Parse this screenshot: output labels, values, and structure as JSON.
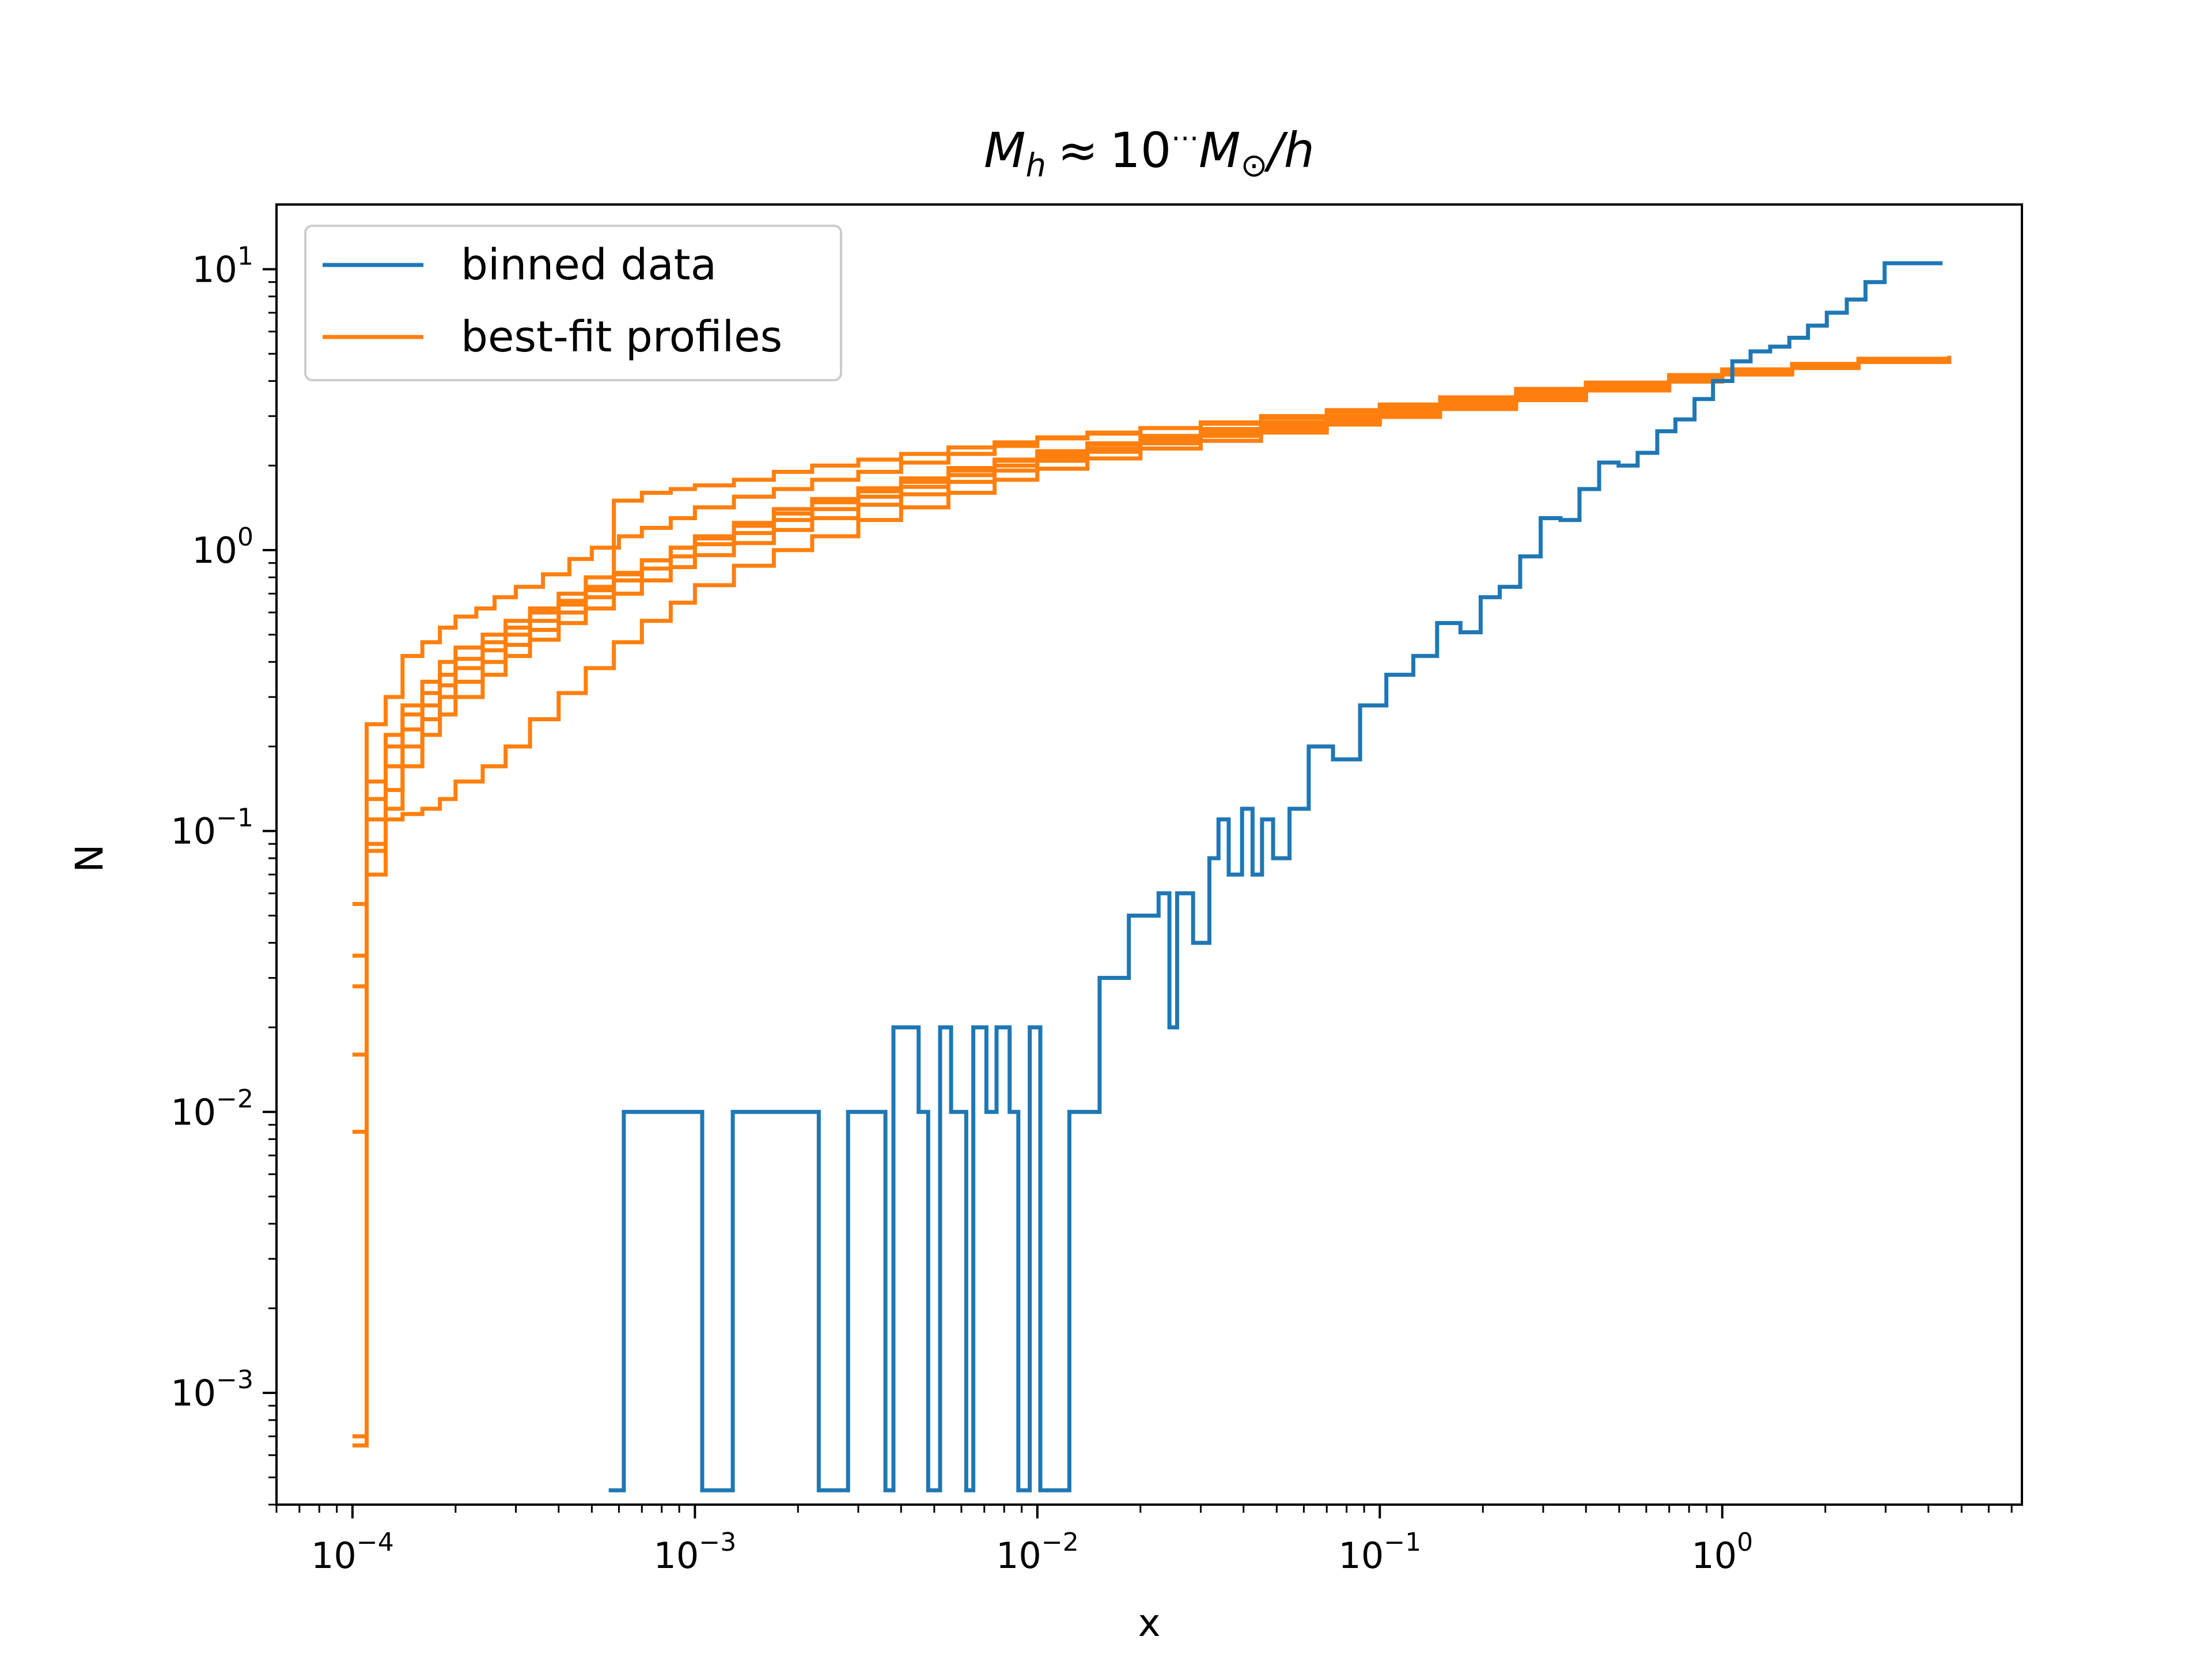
{
  "chart_data": {
    "type": "line",
    "drawstyle": "steps",
    "title_parts": {
      "m": "M",
      "h_sub": "h",
      "approx": "≈",
      "ten": "10",
      "dots": "···",
      "msun": "M",
      "sun_sub": "⊙",
      "slash_h": "/h"
    },
    "xlabel": "x",
    "ylabel": "N",
    "xscale": "log",
    "yscale": "log",
    "xlim": [
      6e-05,
      7.5
    ],
    "ylim": [
      0.0004,
      17
    ],
    "xticks": [
      {
        "value": 0.0001,
        "base": "10",
        "exp": "−4"
      },
      {
        "value": 0.001,
        "base": "10",
        "exp": "−3"
      },
      {
        "value": 0.01,
        "base": "10",
        "exp": "−2"
      },
      {
        "value": 0.1,
        "base": "10",
        "exp": "−1"
      },
      {
        "value": 1,
        "base": "10",
        "exp": "0"
      }
    ],
    "yticks": [
      {
        "value": 0.001,
        "base": "10",
        "exp": "−3"
      },
      {
        "value": 0.01,
        "base": "10",
        "exp": "−2"
      },
      {
        "value": 0.1,
        "base": "10",
        "exp": "−1"
      },
      {
        "value": 1,
        "base": "10",
        "exp": "0"
      },
      {
        "value": 10,
        "base": "10",
        "exp": "1"
      }
    ],
    "legend": {
      "placement": "upper left",
      "entries": [
        {
          "label": "binned data",
          "color": "#1f77b4"
        },
        {
          "label": "best-fit profiles",
          "color": "#ff7f0e"
        }
      ]
    },
    "grid": false,
    "series": [
      {
        "name": "binned data",
        "color": "#1f77b4",
        "x": [
          0.00056,
          0.00062,
          0.00105,
          0.00129,
          0.0023,
          0.0028,
          0.0029,
          0.0036,
          0.0038,
          0.0045,
          0.0048,
          0.0052,
          0.0056,
          0.0062,
          0.0065,
          0.0071,
          0.0076,
          0.0083,
          0.0088,
          0.0095,
          0.0102,
          0.0124,
          0.0152,
          0.0185,
          0.0226,
          0.0243,
          0.0256,
          0.0285,
          0.0318,
          0.0338,
          0.0362,
          0.0396,
          0.0425,
          0.0453,
          0.0488,
          0.0545,
          0.062,
          0.073,
          0.0876,
          0.1045,
          0.1253,
          0.147,
          0.172,
          0.197,
          0.224,
          0.257,
          0.295,
          0.337,
          0.383,
          0.437,
          0.498,
          0.566,
          0.646,
          0.73,
          0.83,
          0.94,
          1.07,
          1.21,
          1.38,
          1.57,
          1.78,
          2.02,
          2.31,
          2.62,
          2.98,
          3.38,
          3.85,
          4.4
        ],
        "y": [
          0.00045,
          0.01,
          0.00045,
          0.01,
          0.00045,
          0.01,
          0.01,
          0.00045,
          0.02,
          0.01,
          0.00045,
          0.02,
          0.01,
          0.00045,
          0.02,
          0.01,
          0.02,
          0.01,
          0.00045,
          0.02,
          0.00045,
          0.01,
          0.03,
          0.05,
          0.06,
          0.02,
          0.06,
          0.04,
          0.08,
          0.11,
          0.07,
          0.12,
          0.07,
          0.11,
          0.08,
          0.12,
          0.2,
          0.18,
          0.28,
          0.36,
          0.42,
          0.55,
          0.51,
          0.68,
          0.74,
          0.95,
          1.3,
          1.28,
          1.65,
          2.05,
          2.0,
          2.22,
          2.65,
          2.92,
          3.45,
          4.0,
          4.7,
          5.1,
          5.3,
          5.7,
          6.3,
          7.0,
          7.8,
          9.0,
          10.5,
          10.5,
          10.5,
          10.5
        ]
      },
      {
        "name": "best-fit profiles",
        "color": "#ff7f0e",
        "x": [
          0.0001,
          0.00011,
          0.000125,
          0.00014,
          0.00016,
          0.00018,
          0.0002,
          0.00023,
          0.00026,
          0.0003,
          0.00036,
          0.00043,
          0.0005,
          0.0006,
          0.0007,
          0.00085,
          0.001,
          0.0013,
          0.0017,
          0.0022,
          0.003,
          0.004,
          0.0055,
          0.0075,
          0.01,
          0.014,
          0.02,
          0.03,
          0.045,
          0.07,
          0.1,
          0.15,
          0.25,
          0.4,
          0.7,
          1.0,
          1.6,
          2.5,
          4.6
        ],
        "y": [
          0.0007,
          0.24,
          0.3,
          0.42,
          0.47,
          0.53,
          0.58,
          0.62,
          0.68,
          0.74,
          0.82,
          0.93,
          1.02,
          1.12,
          1.2,
          1.3,
          1.42,
          1.55,
          1.65,
          1.78,
          1.9,
          2.05,
          2.2,
          2.35,
          2.5,
          2.6,
          2.72,
          2.85,
          3.0,
          3.15,
          3.3,
          3.5,
          3.75,
          3.95,
          4.2,
          4.4,
          4.6,
          4.8,
          4.9
        ]
      },
      {
        "name": "",
        "color": "#ff7f0e",
        "x": [
          0.0001,
          0.00011,
          0.000125,
          0.00014,
          0.00016,
          0.00018,
          0.0002,
          0.00024,
          0.00028,
          0.00033,
          0.0004,
          0.00048,
          0.00058,
          0.0007,
          0.00085,
          0.001,
          0.0013,
          0.0017,
          0.0022,
          0.003,
          0.004,
          0.0055,
          0.0075,
          0.01,
          0.014,
          0.02,
          0.03,
          0.045,
          0.07,
          0.1,
          0.15,
          0.25,
          0.4,
          0.7,
          1.0,
          1.6,
          2.5,
          4.6
        ],
        "y": [
          0.055,
          0.13,
          0.2,
          0.26,
          0.31,
          0.36,
          0.41,
          0.47,
          0.53,
          0.6,
          0.66,
          0.74,
          0.83,
          0.92,
          1.02,
          1.1,
          1.22,
          1.35,
          1.48,
          1.62,
          1.75,
          1.92,
          2.08,
          2.22,
          2.38,
          2.52,
          2.66,
          2.82,
          2.98,
          3.15,
          3.35,
          3.6,
          3.85,
          4.1,
          4.35,
          4.55,
          4.75,
          4.9
        ]
      },
      {
        "name": "",
        "color": "#ff7f0e",
        "x": [
          0.0001,
          0.00011,
          0.000125,
          0.00014,
          0.00016,
          0.00018,
          0.0002,
          0.00024,
          0.00028,
          0.00033,
          0.0004,
          0.00048,
          0.00058,
          0.0007,
          0.00085,
          0.001,
          0.0013,
          0.0017,
          0.0022,
          0.003,
          0.004,
          0.0055,
          0.0075,
          0.01,
          0.014,
          0.02,
          0.03,
          0.045,
          0.07,
          0.1,
          0.15,
          0.25,
          0.4,
          0.7,
          1.0,
          1.6,
          2.5,
          4.6
        ],
        "y": [
          0.028,
          0.09,
          0.14,
          0.2,
          0.25,
          0.3,
          0.34,
          0.4,
          0.46,
          0.52,
          0.6,
          0.68,
          0.78,
          0.86,
          0.95,
          1.05,
          1.15,
          1.28,
          1.4,
          1.55,
          1.68,
          1.85,
          2.0,
          2.15,
          2.3,
          2.45,
          2.6,
          2.75,
          2.92,
          3.1,
          3.3,
          3.55,
          3.8,
          4.05,
          4.3,
          4.5,
          4.72,
          4.88
        ]
      },
      {
        "name": "",
        "color": "#ff7f0e",
        "x": [
          0.0001,
          0.00011,
          0.000125,
          0.00014,
          0.00016,
          0.00018,
          0.0002,
          0.00024,
          0.00028,
          0.00033,
          0.0004,
          0.00048,
          0.00058,
          0.0007,
          0.00085,
          0.001,
          0.0013,
          0.0017,
          0.0022,
          0.003,
          0.004,
          0.0055,
          0.0075,
          0.01,
          0.014,
          0.02,
          0.03,
          0.045,
          0.07,
          0.1,
          0.15,
          0.25,
          0.4,
          0.7,
          1.0,
          1.6,
          2.5,
          4.6
        ],
        "y": [
          0.0085,
          0.07,
          0.12,
          0.17,
          0.22,
          0.26,
          0.3,
          0.36,
          0.42,
          0.48,
          0.55,
          0.62,
          0.7,
          0.78,
          0.87,
          0.96,
          1.06,
          1.18,
          1.3,
          1.45,
          1.58,
          1.75,
          1.92,
          2.08,
          2.24,
          2.4,
          2.55,
          2.7,
          2.88,
          3.05,
          3.25,
          3.5,
          3.75,
          4.0,
          4.25,
          4.45,
          4.68,
          4.85
        ]
      },
      {
        "name": "",
        "color": "#ff7f0e",
        "x": [
          0.0001,
          0.00011,
          0.000125,
          0.00014,
          0.00016,
          0.00018,
          0.0002,
          0.00024,
          0.00028,
          0.00033,
          0.0004,
          0.00048,
          0.00058,
          0.0007,
          0.00085,
          0.001,
          0.0013,
          0.0017,
          0.0022,
          0.003,
          0.004,
          0.0055,
          0.0075,
          0.01,
          0.014,
          0.02,
          0.03,
          0.045,
          0.07,
          0.1,
          0.15,
          0.25,
          0.4,
          0.7,
          1.0,
          1.6,
          2.5,
          4.6
        ],
        "y": [
          0.036,
          0.085,
          0.11,
          0.115,
          0.12,
          0.13,
          0.15,
          0.17,
          0.2,
          0.25,
          0.31,
          0.38,
          0.47,
          0.56,
          0.65,
          0.75,
          0.88,
          1.0,
          1.12,
          1.28,
          1.42,
          1.6,
          1.78,
          1.95,
          2.12,
          2.3,
          2.45,
          2.62,
          2.8,
          2.98,
          3.18,
          3.42,
          3.7,
          3.98,
          4.22,
          4.45,
          4.68,
          4.86
        ]
      },
      {
        "name": "",
        "color": "#ff7f0e",
        "x": [
          0.0001,
          0.00011,
          0.000125,
          0.00014,
          0.00016,
          0.00018,
          0.0002,
          0.00024,
          0.00028,
          0.00033,
          0.0004,
          0.00048,
          0.00058,
          0.0007,
          0.00085,
          0.001,
          0.0013,
          0.0017,
          0.0022,
          0.003,
          0.004,
          0.0055,
          0.0075,
          0.01,
          0.014,
          0.02,
          0.03,
          0.045,
          0.07,
          0.1,
          0.15,
          0.25,
          0.4,
          0.7,
          1.0,
          1.6,
          2.5,
          4.6
        ],
        "y": [
          0.016,
          0.11,
          0.17,
          0.23,
          0.28,
          0.33,
          0.38,
          0.44,
          0.5,
          0.56,
          0.64,
          0.72,
          0.82,
          0.92,
          1.02,
          1.12,
          1.25,
          1.4,
          1.52,
          1.66,
          1.8,
          1.96,
          2.1,
          2.25,
          2.4,
          2.55,
          2.7,
          2.85,
          3.0,
          3.18,
          3.38,
          3.62,
          3.88,
          4.12,
          4.35,
          4.56,
          4.76,
          4.9
        ]
      },
      {
        "name": "",
        "color": "#ff7f0e",
        "x": [
          0.0001,
          0.00011,
          0.000125,
          0.00014,
          0.00016,
          0.00018,
          0.0002,
          0.00024,
          0.00028,
          0.00033,
          0.0004,
          0.00048,
          0.00058,
          0.0007,
          0.00085,
          0.001,
          0.0013,
          0.0017,
          0.0022,
          0.003,
          0.004,
          0.0055,
          0.0075,
          0.01,
          0.014,
          0.02,
          0.03,
          0.045,
          0.07,
          0.1,
          0.15,
          0.25,
          0.4,
          0.7,
          1.0,
          1.6,
          2.5,
          4.6
        ],
        "y": [
          0.00065,
          0.15,
          0.22,
          0.28,
          0.34,
          0.4,
          0.45,
          0.5,
          0.56,
          0.62,
          0.7,
          0.8,
          1.5,
          1.6,
          1.65,
          1.7,
          1.78,
          1.9,
          2.0,
          2.1,
          2.2,
          2.32,
          2.42,
          2.52,
          2.62,
          2.72,
          2.82,
          2.95,
          3.1,
          3.25,
          3.45,
          3.7,
          3.9,
          4.15,
          4.38,
          4.58,
          4.78,
          4.92
        ]
      }
    ]
  }
}
